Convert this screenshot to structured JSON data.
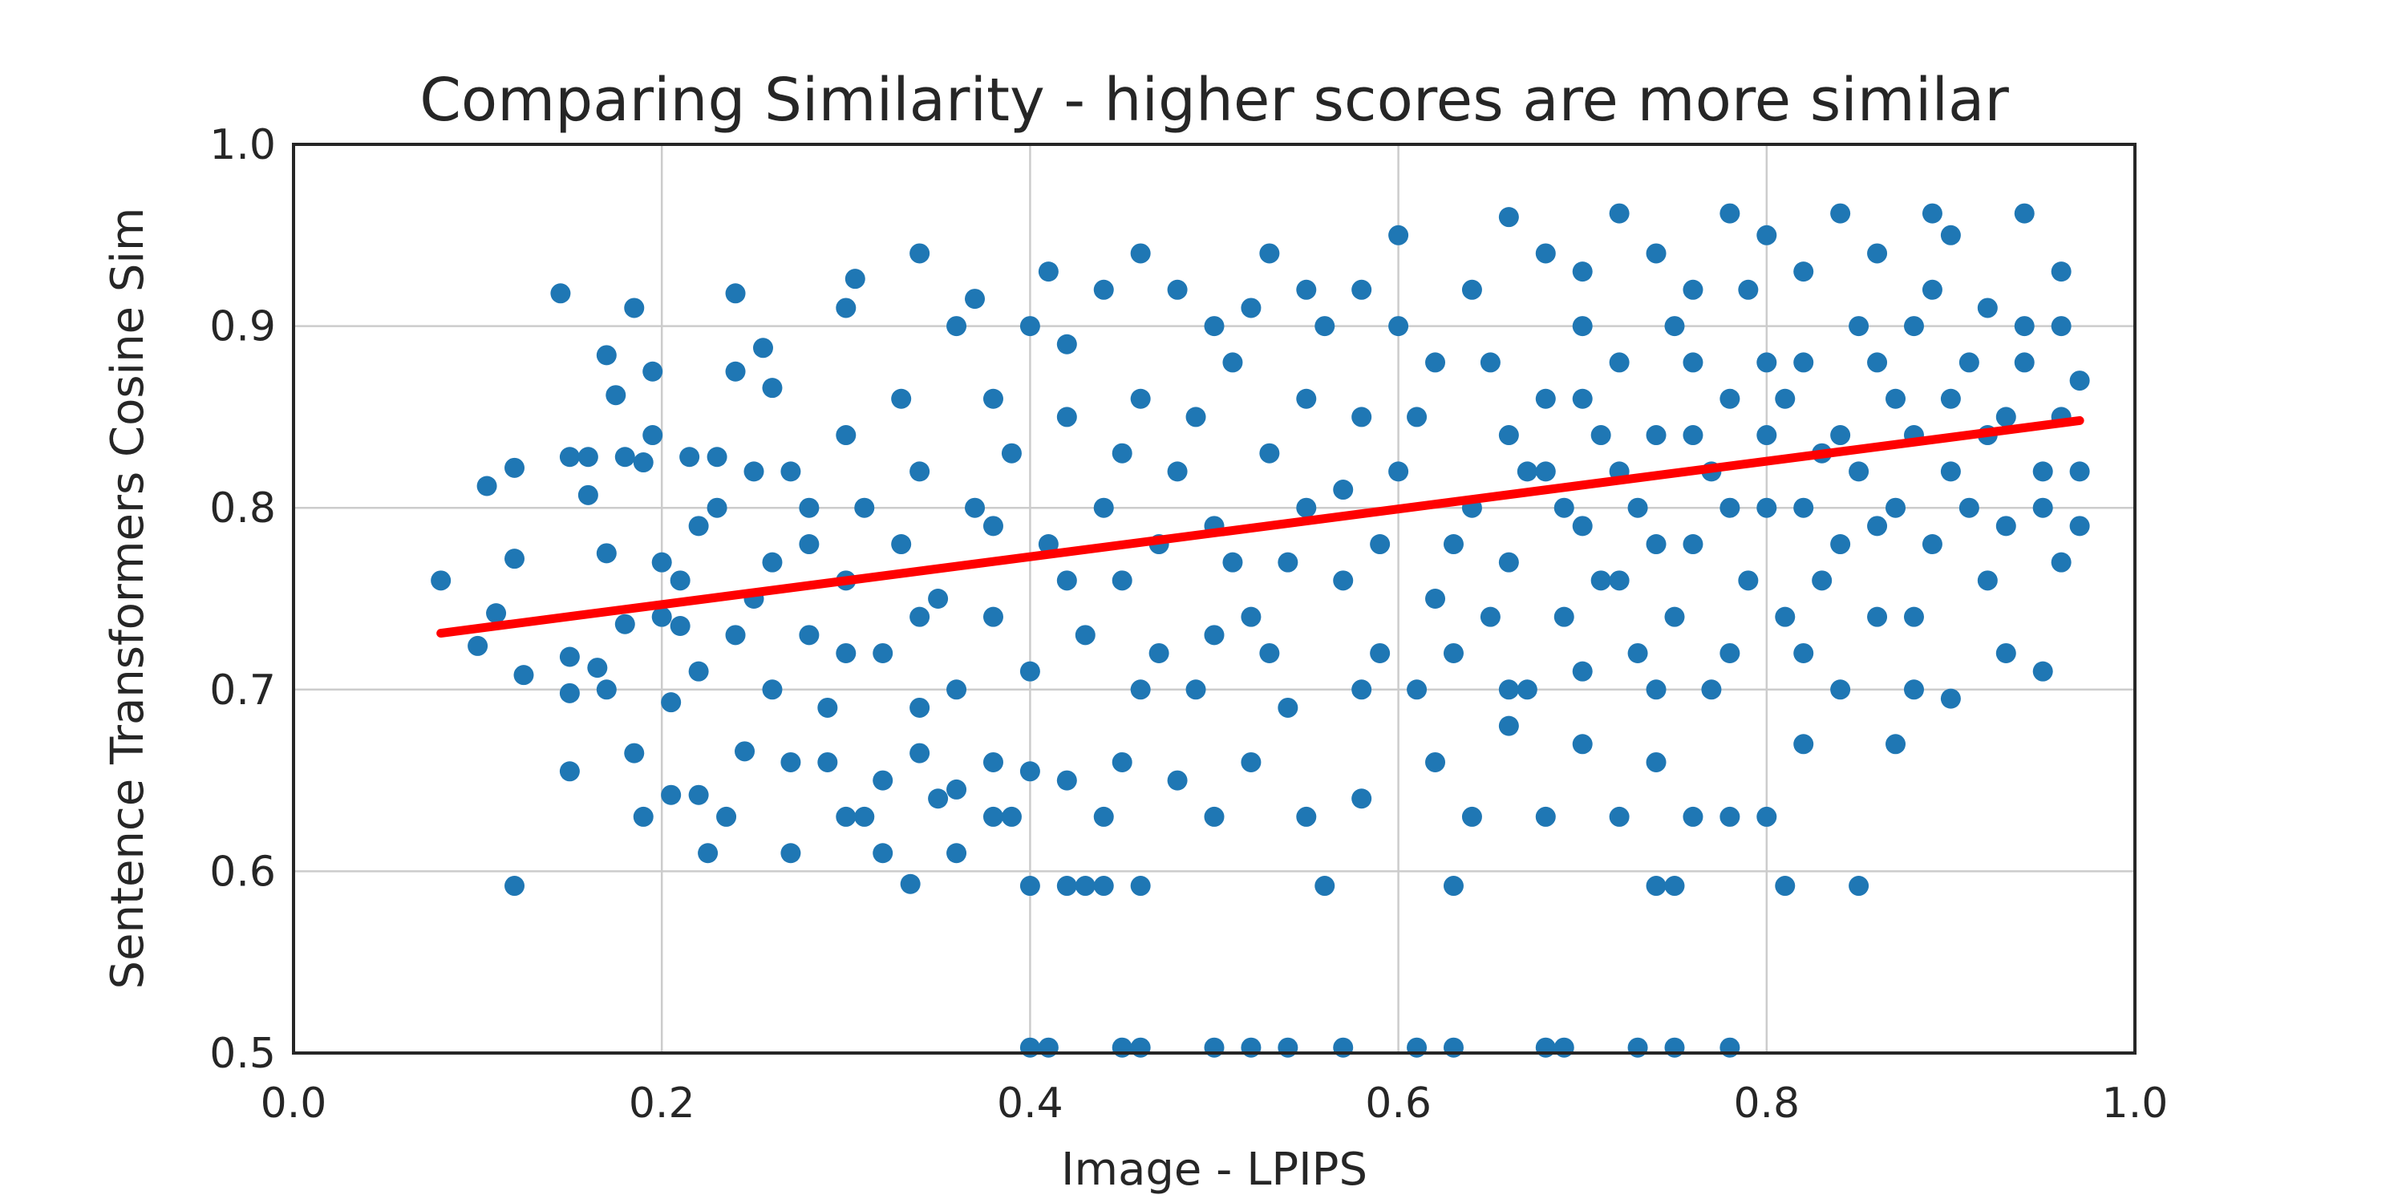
{
  "chart_data": {
    "type": "scatter",
    "title": "Comparing Similarity - higher scores are more similar",
    "xlabel": "Image - LPIPS",
    "ylabel": "Sentence Transformers Cosine Sim",
    "xlim": [
      0.0,
      1.0
    ],
    "ylim": [
      0.5,
      1.0
    ],
    "xticks": [
      "0.0",
      "0.2",
      "0.4",
      "0.6",
      "0.8",
      "1.0"
    ],
    "yticks": [
      "0.5",
      "0.6",
      "0.7",
      "0.8",
      "0.9",
      "1.0"
    ],
    "grid": true,
    "point_color": "#1f77b4",
    "fit_line_color": "#ff0000",
    "fit_line": [
      [
        0.08,
        0.731
      ],
      [
        0.97,
        0.848
      ]
    ],
    "points": [
      [
        0.08,
        0.76
      ],
      [
        0.1,
        0.724
      ],
      [
        0.105,
        0.812
      ],
      [
        0.11,
        0.742
      ],
      [
        0.12,
        0.772
      ],
      [
        0.12,
        0.822
      ],
      [
        0.125,
        0.708
      ],
      [
        0.12,
        0.592
      ],
      [
        0.145,
        0.918
      ],
      [
        0.15,
        0.828
      ],
      [
        0.15,
        0.718
      ],
      [
        0.15,
        0.698
      ],
      [
        0.15,
        0.655
      ],
      [
        0.16,
        0.807
      ],
      [
        0.16,
        0.828
      ],
      [
        0.165,
        0.712
      ],
      [
        0.17,
        0.884
      ],
      [
        0.17,
        0.775
      ],
      [
        0.17,
        0.7
      ],
      [
        0.175,
        0.862
      ],
      [
        0.18,
        0.828
      ],
      [
        0.18,
        0.736
      ],
      [
        0.185,
        0.91
      ],
      [
        0.185,
        0.665
      ],
      [
        0.19,
        0.825
      ],
      [
        0.19,
        0.63
      ],
      [
        0.195,
        0.875
      ],
      [
        0.195,
        0.84
      ],
      [
        0.2,
        0.77
      ],
      [
        0.2,
        0.74
      ],
      [
        0.205,
        0.693
      ],
      [
        0.205,
        0.642
      ],
      [
        0.21,
        0.76
      ],
      [
        0.21,
        0.735
      ],
      [
        0.215,
        0.828
      ],
      [
        0.22,
        0.642
      ],
      [
        0.22,
        0.71
      ],
      [
        0.225,
        0.61
      ],
      [
        0.23,
        0.8
      ],
      [
        0.23,
        0.828
      ],
      [
        0.235,
        0.63
      ],
      [
        0.24,
        0.875
      ],
      [
        0.24,
        0.918
      ],
      [
        0.245,
        0.666
      ],
      [
        0.25,
        0.82
      ],
      [
        0.25,
        0.75
      ],
      [
        0.255,
        0.888
      ],
      [
        0.26,
        0.866
      ],
      [
        0.26,
        0.7
      ],
      [
        0.27,
        0.61
      ],
      [
        0.27,
        0.66
      ],
      [
        0.27,
        0.82
      ],
      [
        0.28,
        0.78
      ],
      [
        0.28,
        0.73
      ],
      [
        0.29,
        0.69
      ],
      [
        0.3,
        0.84
      ],
      [
        0.3,
        0.91
      ],
      [
        0.305,
        0.926
      ],
      [
        0.31,
        0.63
      ],
      [
        0.32,
        0.61
      ],
      [
        0.33,
        0.86
      ],
      [
        0.335,
        0.593
      ],
      [
        0.34,
        0.94
      ],
      [
        0.34,
        0.69
      ],
      [
        0.35,
        0.64
      ],
      [
        0.36,
        0.61
      ],
      [
        0.36,
        0.9
      ],
      [
        0.37,
        0.915
      ],
      [
        0.38,
        0.66
      ],
      [
        0.39,
        0.63
      ],
      [
        0.4,
        0.592
      ],
      [
        0.4,
        0.503
      ],
      [
        0.41,
        0.503
      ],
      [
        0.41,
        0.93
      ],
      [
        0.42,
        0.592
      ],
      [
        0.43,
        0.592
      ],
      [
        0.44,
        0.592
      ],
      [
        0.45,
        0.503
      ],
      [
        0.46,
        0.503
      ],
      [
        0.46,
        0.592
      ],
      [
        0.46,
        0.94
      ],
      [
        0.5,
        0.503
      ],
      [
        0.52,
        0.503
      ],
      [
        0.54,
        0.503
      ],
      [
        0.53,
        0.94
      ],
      [
        0.57,
        0.503
      ],
      [
        0.6,
        0.95
      ],
      [
        0.61,
        0.503
      ],
      [
        0.63,
        0.503
      ],
      [
        0.66,
        0.96
      ],
      [
        0.68,
        0.503
      ],
      [
        0.69,
        0.503
      ],
      [
        0.73,
        0.503
      ],
      [
        0.75,
        0.503
      ],
      [
        0.78,
        0.503
      ],
      [
        0.74,
        0.592
      ],
      [
        0.75,
        0.592
      ],
      [
        0.81,
        0.592
      ],
      [
        0.85,
        0.592
      ],
      [
        0.63,
        0.592
      ],
      [
        0.56,
        0.592
      ],
      [
        0.72,
        0.962
      ],
      [
        0.78,
        0.962
      ],
      [
        0.84,
        0.962
      ],
      [
        0.89,
        0.962
      ],
      [
        0.94,
        0.962
      ],
      [
        0.95,
        0.71
      ],
      [
        0.96,
        0.93
      ],
      [
        0.97,
        0.87
      ],
      [
        0.97,
        0.79
      ],
      [
        0.96,
        0.77
      ],
      [
        0.95,
        0.82
      ],
      [
        0.93,
        0.72
      ],
      [
        0.9,
        0.695
      ],
      [
        0.3,
        0.76
      ],
      [
        0.31,
        0.8
      ],
      [
        0.32,
        0.72
      ],
      [
        0.33,
        0.78
      ],
      [
        0.34,
        0.82
      ],
      [
        0.35,
        0.75
      ],
      [
        0.36,
        0.7
      ],
      [
        0.37,
        0.8
      ],
      [
        0.38,
        0.74
      ],
      [
        0.39,
        0.83
      ],
      [
        0.4,
        0.71
      ],
      [
        0.41,
        0.78
      ],
      [
        0.42,
        0.85
      ],
      [
        0.43,
        0.73
      ],
      [
        0.44,
        0.8
      ],
      [
        0.45,
        0.76
      ],
      [
        0.46,
        0.86
      ],
      [
        0.47,
        0.72
      ],
      [
        0.48,
        0.82
      ],
      [
        0.49,
        0.7
      ],
      [
        0.5,
        0.79
      ],
      [
        0.51,
        0.88
      ],
      [
        0.52,
        0.74
      ],
      [
        0.53,
        0.83
      ],
      [
        0.54,
        0.69
      ],
      [
        0.55,
        0.8
      ],
      [
        0.56,
        0.9
      ],
      [
        0.57,
        0.76
      ],
      [
        0.58,
        0.85
      ],
      [
        0.59,
        0.72
      ],
      [
        0.6,
        0.82
      ],
      [
        0.61,
        0.7
      ],
      [
        0.62,
        0.88
      ],
      [
        0.63,
        0.78
      ],
      [
        0.64,
        0.92
      ],
      [
        0.65,
        0.74
      ],
      [
        0.66,
        0.84
      ],
      [
        0.67,
        0.7
      ],
      [
        0.68,
        0.86
      ],
      [
        0.69,
        0.8
      ],
      [
        0.7,
        0.93
      ],
      [
        0.71,
        0.76
      ],
      [
        0.72,
        0.88
      ],
      [
        0.73,
        0.72
      ],
      [
        0.74,
        0.84
      ],
      [
        0.75,
        0.9
      ],
      [
        0.76,
        0.78
      ],
      [
        0.77,
        0.7
      ],
      [
        0.78,
        0.86
      ],
      [
        0.79,
        0.92
      ],
      [
        0.8,
        0.8
      ],
      [
        0.81,
        0.74
      ],
      [
        0.82,
        0.88
      ],
      [
        0.83,
        0.83
      ],
      [
        0.84,
        0.7
      ],
      [
        0.85,
        0.9
      ],
      [
        0.86,
        0.79
      ],
      [
        0.87,
        0.86
      ],
      [
        0.88,
        0.74
      ],
      [
        0.89,
        0.92
      ],
      [
        0.9,
        0.82
      ],
      [
        0.91,
        0.88
      ],
      [
        0.92,
        0.76
      ],
      [
        0.93,
        0.85
      ],
      [
        0.94,
        0.9
      ],
      [
        0.95,
        0.8
      ],
      [
        0.96,
        0.85
      ],
      [
        0.45,
        0.83
      ],
      [
        0.47,
        0.78
      ],
      [
        0.49,
        0.85
      ],
      [
        0.51,
        0.77
      ],
      [
        0.53,
        0.72
      ],
      [
        0.55,
        0.86
      ],
      [
        0.57,
        0.81
      ],
      [
        0.59,
        0.78
      ],
      [
        0.61,
        0.85
      ],
      [
        0.63,
        0.72
      ],
      [
        0.65,
        0.88
      ],
      [
        0.67,
        0.82
      ],
      [
        0.69,
        0.74
      ],
      [
        0.71,
        0.84
      ],
      [
        0.73,
        0.8
      ],
      [
        0.75,
        0.74
      ],
      [
        0.77,
        0.82
      ],
      [
        0.79,
        0.76
      ],
      [
        0.81,
        0.86
      ],
      [
        0.83,
        0.76
      ],
      [
        0.85,
        0.82
      ],
      [
        0.87,
        0.8
      ],
      [
        0.89,
        0.78
      ],
      [
        0.91,
        0.8
      ],
      [
        0.93,
        0.79
      ],
      [
        0.64,
        0.8
      ],
      [
        0.66,
        0.77
      ],
      [
        0.68,
        0.82
      ],
      [
        0.7,
        0.79
      ],
      [
        0.72,
        0.82
      ],
      [
        0.74,
        0.78
      ],
      [
        0.76,
        0.84
      ],
      [
        0.78,
        0.8
      ],
      [
        0.8,
        0.84
      ],
      [
        0.82,
        0.8
      ],
      [
        0.84,
        0.84
      ],
      [
        0.86,
        0.88
      ],
      [
        0.88,
        0.84
      ],
      [
        0.9,
        0.86
      ],
      [
        0.92,
        0.84
      ],
      [
        0.7,
        0.86
      ],
      [
        0.72,
        0.76
      ],
      [
        0.76,
        0.88
      ],
      [
        0.8,
        0.88
      ],
      [
        0.84,
        0.78
      ],
      [
        0.86,
        0.74
      ],
      [
        0.82,
        0.72
      ],
      [
        0.78,
        0.72
      ],
      [
        0.74,
        0.7
      ],
      [
        0.7,
        0.71
      ],
      [
        0.66,
        0.7
      ],
      [
        0.62,
        0.75
      ],
      [
        0.58,
        0.7
      ],
      [
        0.54,
        0.77
      ],
      [
        0.5,
        0.73
      ],
      [
        0.46,
        0.7
      ],
      [
        0.42,
        0.76
      ],
      [
        0.38,
        0.79
      ],
      [
        0.34,
        0.74
      ],
      [
        0.3,
        0.72
      ],
      [
        0.28,
        0.8
      ],
      [
        0.26,
        0.77
      ],
      [
        0.24,
        0.73
      ],
      [
        0.22,
        0.79
      ],
      [
        0.62,
        0.66
      ],
      [
        0.64,
        0.63
      ],
      [
        0.66,
        0.68
      ],
      [
        0.68,
        0.63
      ],
      [
        0.7,
        0.67
      ],
      [
        0.72,
        0.63
      ],
      [
        0.74,
        0.66
      ],
      [
        0.76,
        0.63
      ],
      [
        0.78,
        0.63
      ],
      [
        0.8,
        0.63
      ],
      [
        0.82,
        0.67
      ],
      [
        0.58,
        0.64
      ],
      [
        0.55,
        0.63
      ],
      [
        0.52,
        0.66
      ],
      [
        0.5,
        0.63
      ],
      [
        0.48,
        0.65
      ],
      [
        0.45,
        0.66
      ],
      [
        0.44,
        0.63
      ],
      [
        0.42,
        0.65
      ],
      [
        0.4,
        0.655
      ],
      [
        0.38,
        0.63
      ],
      [
        0.36,
        0.645
      ],
      [
        0.34,
        0.665
      ],
      [
        0.32,
        0.65
      ],
      [
        0.3,
        0.63
      ],
      [
        0.29,
        0.66
      ],
      [
        0.87,
        0.67
      ],
      [
        0.88,
        0.7
      ],
      [
        0.6,
        0.9
      ],
      [
        0.58,
        0.92
      ],
      [
        0.55,
        0.92
      ],
      [
        0.52,
        0.91
      ],
      [
        0.5,
        0.9
      ],
      [
        0.48,
        0.92
      ],
      [
        0.44,
        0.92
      ],
      [
        0.42,
        0.89
      ],
      [
        0.4,
        0.9
      ],
      [
        0.38,
        0.86
      ],
      [
        0.68,
        0.94
      ],
      [
        0.7,
        0.9
      ],
      [
        0.74,
        0.94
      ],
      [
        0.76,
        0.92
      ],
      [
        0.8,
        0.95
      ],
      [
        0.82,
        0.93
      ],
      [
        0.86,
        0.94
      ],
      [
        0.88,
        0.9
      ],
      [
        0.9,
        0.95
      ],
      [
        0.92,
        0.91
      ],
      [
        0.94,
        0.88
      ],
      [
        0.96,
        0.9
      ],
      [
        0.97,
        0.82
      ]
    ]
  }
}
